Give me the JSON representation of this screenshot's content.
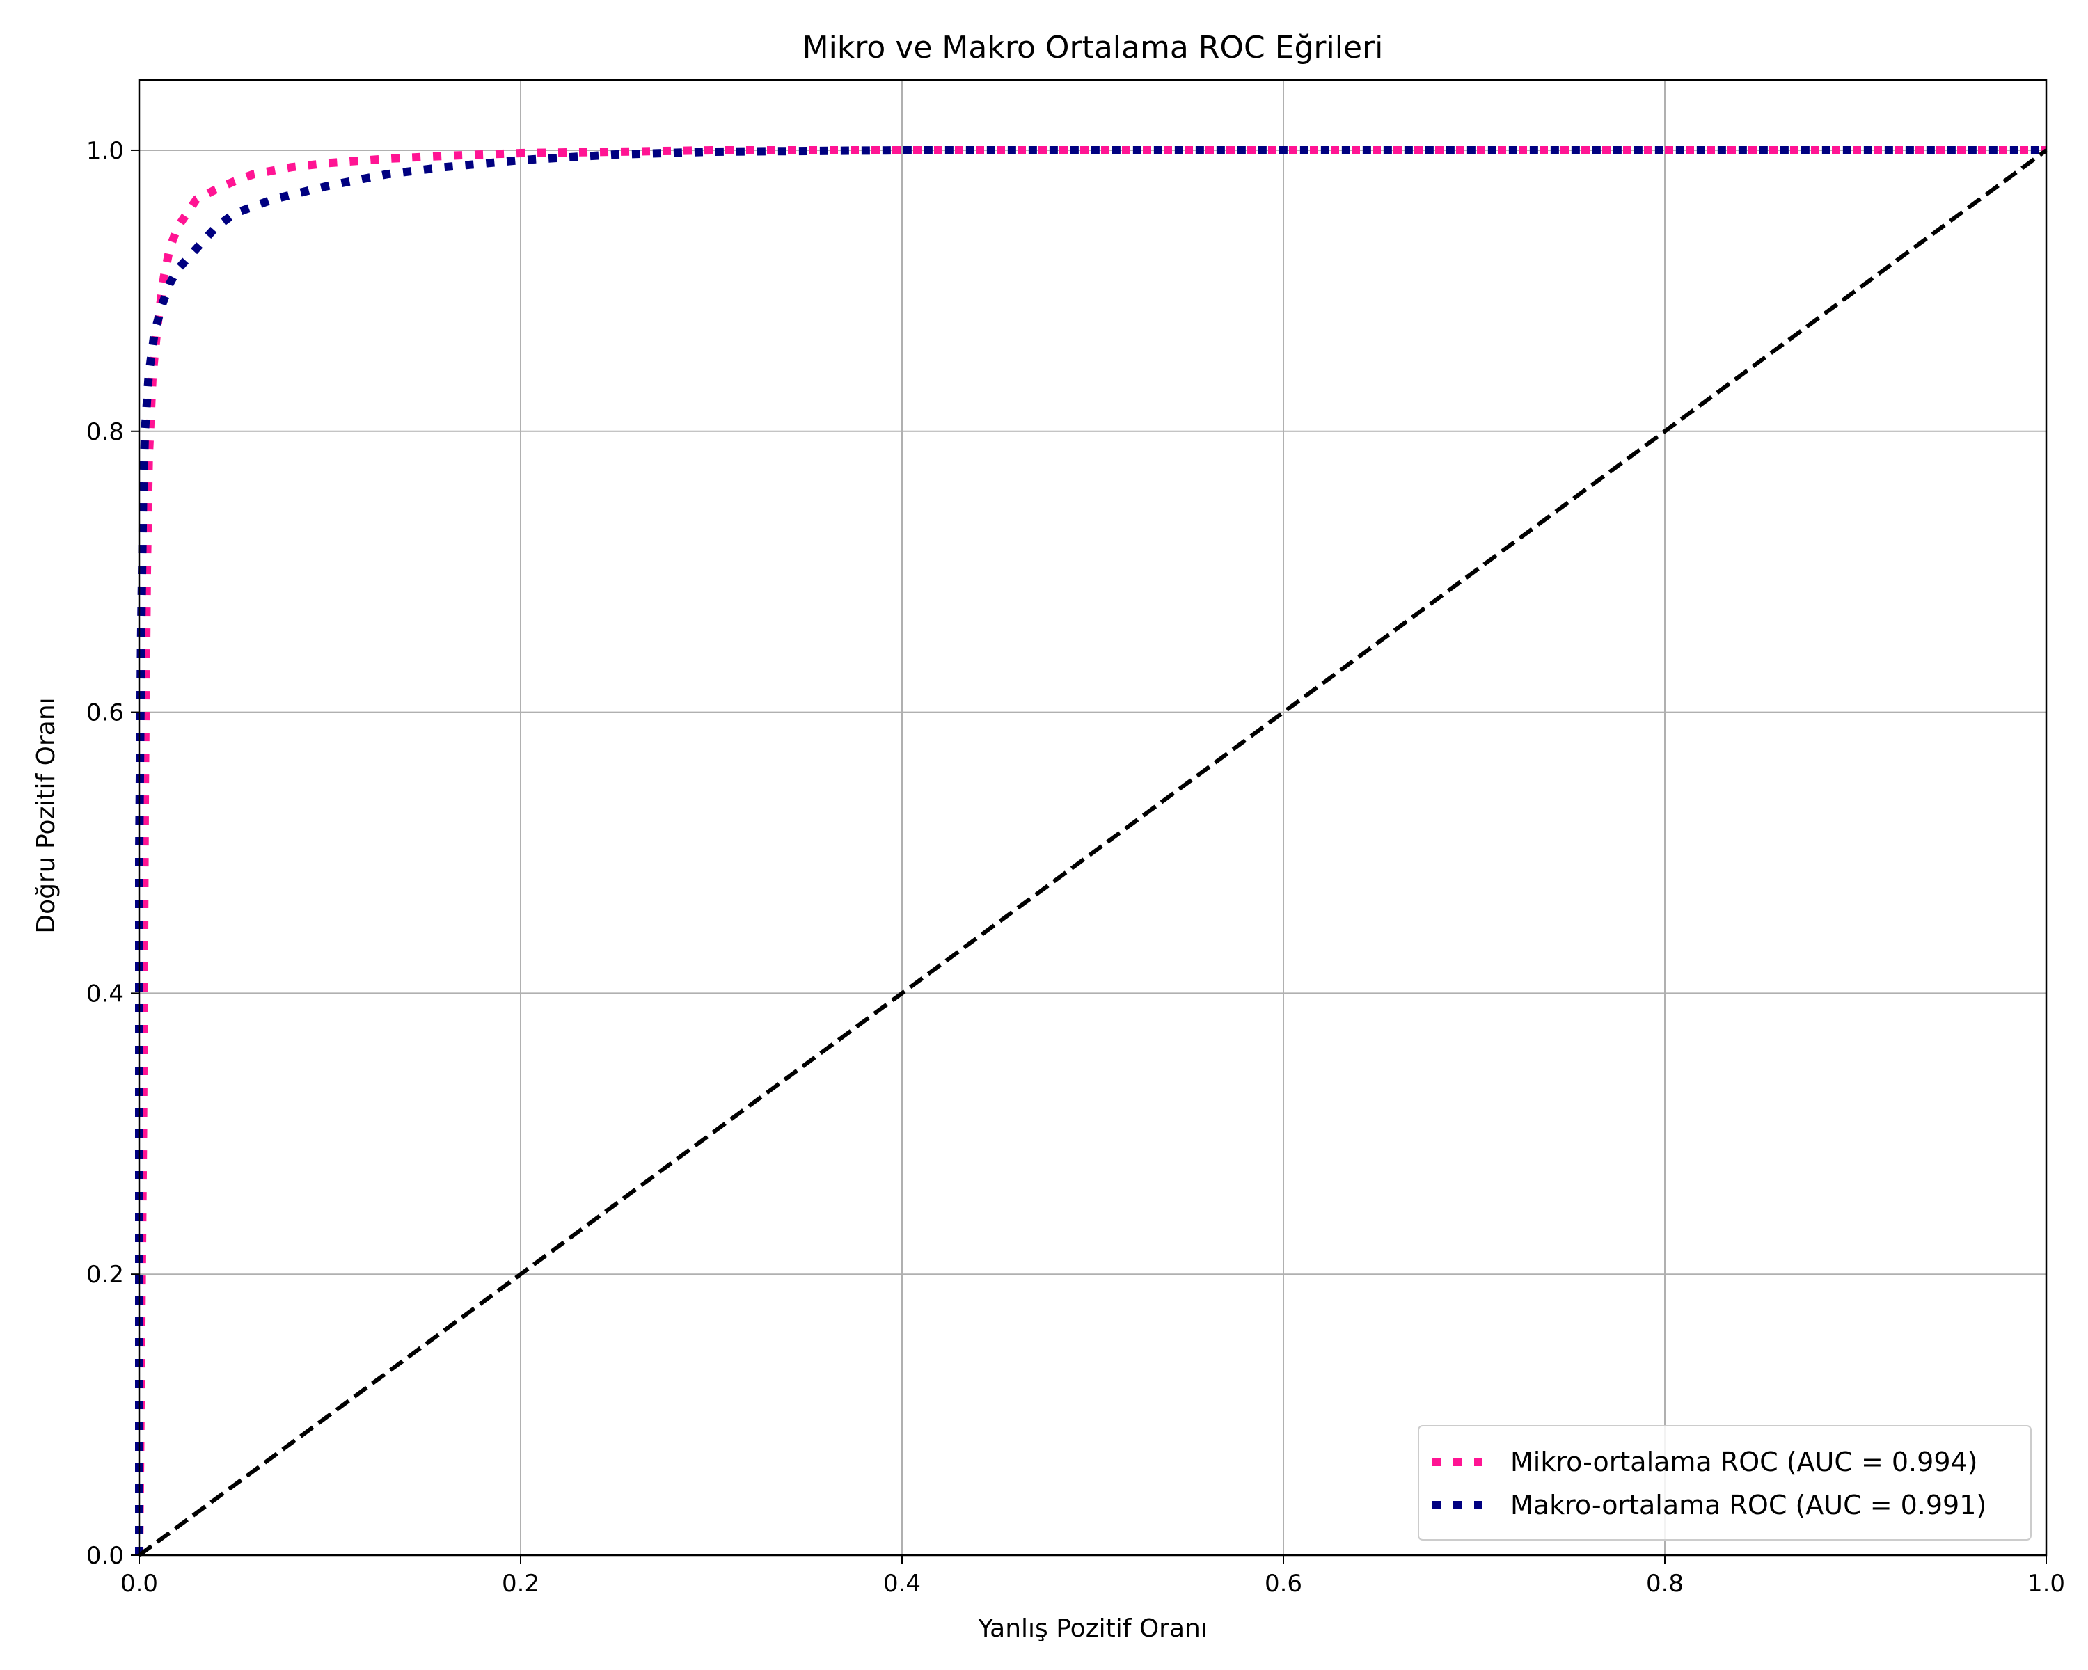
{
  "chart_data": {
    "type": "line",
    "title": "Mikro ve Makro Ortalama ROC Eğrileri",
    "xlabel": "Yanlış Pozitif Oranı",
    "ylabel": "Doğru Pozitif Oranı",
    "xlim": [
      0.0,
      1.0
    ],
    "ylim": [
      0.0,
      1.05
    ],
    "xticks": [
      "0.0",
      "0.2",
      "0.4",
      "0.6",
      "0.8",
      "1.0"
    ],
    "yticks": [
      "0.0",
      "0.2",
      "0.4",
      "0.6",
      "0.8",
      "1.0"
    ],
    "grid": true,
    "legend_position": "lower-right",
    "series": [
      {
        "name": "Mikro-ortalama ROC (AUC = 0.994)",
        "color": "#ff1493",
        "style": "dotted",
        "x": [
          0.0,
          0.002,
          0.003,
          0.004,
          0.005,
          0.007,
          0.01,
          0.013,
          0.016,
          0.02,
          0.025,
          0.03,
          0.04,
          0.05,
          0.06,
          0.08,
          0.1,
          0.13,
          0.16,
          0.2,
          0.25,
          0.3,
          0.4,
          0.6,
          0.8,
          1.0
        ],
        "y": [
          0.0,
          0.3,
          0.55,
          0.7,
          0.78,
          0.84,
          0.88,
          0.91,
          0.93,
          0.945,
          0.955,
          0.965,
          0.972,
          0.978,
          0.983,
          0.988,
          0.991,
          0.994,
          0.996,
          0.998,
          0.999,
          1.0,
          1.0,
          1.0,
          1.0,
          1.0
        ]
      },
      {
        "name": "Makro-ortalama ROC (AUC = 0.991)",
        "color": "#000080",
        "style": "dotted",
        "x": [
          0.0,
          0.0,
          0.001,
          0.002,
          0.003,
          0.005,
          0.008,
          0.012,
          0.016,
          0.02,
          0.03,
          0.04,
          0.05,
          0.07,
          0.1,
          0.13,
          0.16,
          0.2,
          0.25,
          0.3,
          0.4,
          0.6,
          0.8,
          1.0
        ],
        "y": [
          0.0,
          0.5,
          0.65,
          0.75,
          0.8,
          0.84,
          0.87,
          0.89,
          0.905,
          0.915,
          0.93,
          0.945,
          0.955,
          0.965,
          0.975,
          0.983,
          0.988,
          0.993,
          0.997,
          0.999,
          1.0,
          1.0,
          1.0,
          1.0
        ]
      },
      {
        "name": "",
        "color": "#000000",
        "style": "dashed",
        "x": [
          0.0,
          1.0
        ],
        "y": [
          0.0,
          1.0
        ]
      }
    ]
  }
}
